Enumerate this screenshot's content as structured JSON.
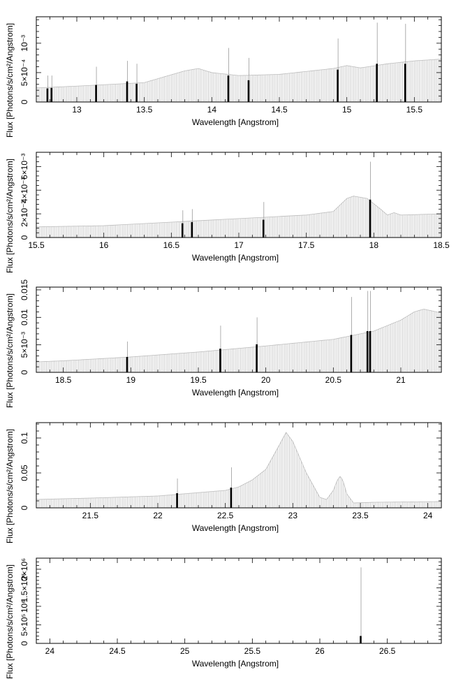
{
  "chart_data": [
    {
      "type": "bar",
      "xlabel": "Wavelength [Angstrom]",
      "ylabel": "Flux [Photons/s/cm²/Angstrom]",
      "xlim": [
        12.7,
        15.7
      ],
      "ylim": [
        0,
        0.00145
      ],
      "xticks": [
        13,
        13.5,
        14,
        14.5,
        15,
        15.5
      ],
      "xtick_labels": [
        "13",
        "13.5",
        "14",
        "14.5",
        "15",
        "15.5"
      ],
      "yticks": [
        0,
        0.0005,
        0.001
      ],
      "ytick_labels": [
        "0",
        "5×10⁻⁴",
        "10⁻³"
      ],
      "continuum": {
        "x": [
          12.7,
          13.0,
          13.5,
          13.8,
          13.9,
          14.0,
          14.2,
          14.5,
          14.9,
          15.0,
          15.1,
          15.3,
          15.5,
          15.7
        ],
        "y": [
          0.00024,
          0.00027,
          0.00033,
          0.00053,
          0.00057,
          0.0005,
          0.00045,
          0.00047,
          0.00057,
          0.00062,
          0.00058,
          0.00065,
          0.0007,
          0.00073
        ]
      },
      "lines": [
        {
          "x": 12.78,
          "flux": 0.00023,
          "err": 0.00045
        },
        {
          "x": 12.81,
          "flux": 0.00024,
          "err": 0.00045
        },
        {
          "x": 13.14,
          "flux": 0.00029,
          "err": 0.0006
        },
        {
          "x": 13.37,
          "flux": 0.00035,
          "err": 0.0007
        },
        {
          "x": 13.44,
          "flux": 0.00031,
          "err": 0.00065
        },
        {
          "x": 14.12,
          "flux": 0.00045,
          "err": 0.00092
        },
        {
          "x": 14.27,
          "flux": 0.00037,
          "err": 0.00075
        },
        {
          "x": 14.93,
          "flux": 0.00055,
          "err": 0.00108
        },
        {
          "x": 15.22,
          "flux": 0.00065,
          "err": 0.00135
        },
        {
          "x": 15.43,
          "flux": 0.00065,
          "err": 0.00133
        }
      ]
    },
    {
      "type": "bar",
      "xlabel": "Wavelength [Angstrom]",
      "ylabel": "Flux [Photons/s/cm²/Angstrom]",
      "xlim": [
        15.5,
        18.5
      ],
      "ylim": [
        0,
        0.0072
      ],
      "xticks": [
        15.5,
        16,
        16.5,
        17,
        17.5,
        18,
        18.5
      ],
      "xtick_labels": [
        "15.5",
        "16",
        "16.5",
        "17",
        "17.5",
        "18",
        "18.5"
      ],
      "yticks": [
        0,
        0.002,
        0.004,
        0.006
      ],
      "ytick_labels": [
        "0",
        "2×10⁻³",
        "4×10⁻³",
        "6×10⁻³"
      ],
      "continuum": {
        "x": [
          15.5,
          16.0,
          16.5,
          17.0,
          17.5,
          17.7,
          17.8,
          17.85,
          17.95,
          18.05,
          18.1,
          18.15,
          18.2,
          18.5
        ],
        "y": [
          0.0009,
          0.001,
          0.0013,
          0.0016,
          0.0019,
          0.0022,
          0.0033,
          0.0035,
          0.0033,
          0.0024,
          0.0019,
          0.0021,
          0.0019,
          0.002
        ]
      },
      "lines": [
        {
          "x": 16.58,
          "flux": 0.0012,
          "err": 0.0023
        },
        {
          "x": 16.65,
          "flux": 0.0013,
          "err": 0.0024
        },
        {
          "x": 17.18,
          "flux": 0.0015,
          "err": 0.003
        },
        {
          "x": 17.97,
          "flux": 0.0032,
          "err": 0.0064
        }
      ]
    },
    {
      "type": "bar",
      "xlabel": "Wavelength [Angstrom]",
      "ylabel": "Flux [Photons/s/cm²/Angstrom]",
      "xlim": [
        18.3,
        21.3
      ],
      "ylim": [
        0,
        0.0155
      ],
      "xticks": [
        18.5,
        19,
        19.5,
        20,
        20.5,
        21
      ],
      "xtick_labels": [
        "18.5",
        "19",
        "19.5",
        "20",
        "20.5",
        "21"
      ],
      "yticks": [
        0,
        0.005,
        0.01,
        0.015
      ],
      "ytick_labels": [
        "0",
        "5×10⁻³",
        "0.01",
        "0.015"
      ],
      "continuum": {
        "x": [
          18.3,
          18.5,
          19.0,
          19.5,
          20.0,
          20.5,
          20.8,
          21.0,
          21.1,
          21.17,
          21.3
        ],
        "y": [
          0.0019,
          0.0021,
          0.0028,
          0.0037,
          0.0048,
          0.006,
          0.0075,
          0.0095,
          0.011,
          0.0115,
          0.0108
        ]
      },
      "lines": [
        {
          "x": 18.97,
          "flux": 0.0028,
          "err": 0.0056
        },
        {
          "x": 19.66,
          "flux": 0.0043,
          "err": 0.0085
        },
        {
          "x": 19.93,
          "flux": 0.0051,
          "err": 0.01
        },
        {
          "x": 20.63,
          "flux": 0.0068,
          "err": 0.0137
        },
        {
          "x": 20.75,
          "flux": 0.0075,
          "err": 0.0148
        },
        {
          "x": 20.77,
          "flux": 0.0075,
          "err": 0.0148
        }
      ]
    },
    {
      "type": "bar",
      "xlabel": "Wavelength [Angstrom]",
      "ylabel": "Flux [Photons/s/cm²/Angstrom]",
      "xlim": [
        21.1,
        24.1
      ],
      "ylim": [
        0,
        0.122
      ],
      "xticks": [
        21.5,
        22,
        22.5,
        23,
        23.5,
        24
      ],
      "xtick_labels": [
        "21.5",
        "22",
        "22.5",
        "23",
        "23.5",
        "24"
      ],
      "yticks": [
        0,
        0.05,
        0.1
      ],
      "ytick_labels": [
        "0",
        "0.05",
        "0.1"
      ],
      "continuum": {
        "x": [
          21.1,
          21.5,
          22.0,
          22.5,
          22.6,
          22.7,
          22.8,
          22.9,
          22.95,
          23.0,
          23.1,
          23.2,
          23.25,
          23.3,
          23.33,
          23.35,
          23.37,
          23.4,
          23.45,
          23.6,
          24.1
        ],
        "y": [
          0.012,
          0.014,
          0.017,
          0.025,
          0.03,
          0.04,
          0.055,
          0.09,
          0.108,
          0.095,
          0.05,
          0.015,
          0.012,
          0.025,
          0.04,
          0.045,
          0.04,
          0.02,
          0.007,
          0.008,
          0.009
        ]
      },
      "lines": [
        {
          "x": 22.14,
          "flux": 0.021,
          "err": 0.042
        },
        {
          "x": 22.54,
          "flux": 0.029,
          "err": 0.058
        }
      ]
    },
    {
      "type": "bar",
      "xlabel": "Wavelength [Angstrom]",
      "ylabel": "Flux [Photons/s/cm²/Angstrom]",
      "xlim": [
        23.9,
        26.9
      ],
      "ylim": [
        0,
        2300000
      ],
      "xticks": [
        24,
        24.5,
        25,
        25.5,
        26,
        26.5
      ],
      "xtick_labels": [
        "24",
        "24.5",
        "25",
        "25.5",
        "26",
        "26.5"
      ],
      "yticks": [
        0,
        500000,
        1000000,
        1500000,
        2000000
      ],
      "ytick_labels": [
        "0",
        "5×10⁵",
        "10⁶",
        "1.5×10⁶",
        "2×10⁶"
      ],
      "continuum": {
        "x": [],
        "y": []
      },
      "lines": [
        {
          "x": 26.3,
          "flux": 200000,
          "err": 2050000
        }
      ]
    }
  ]
}
